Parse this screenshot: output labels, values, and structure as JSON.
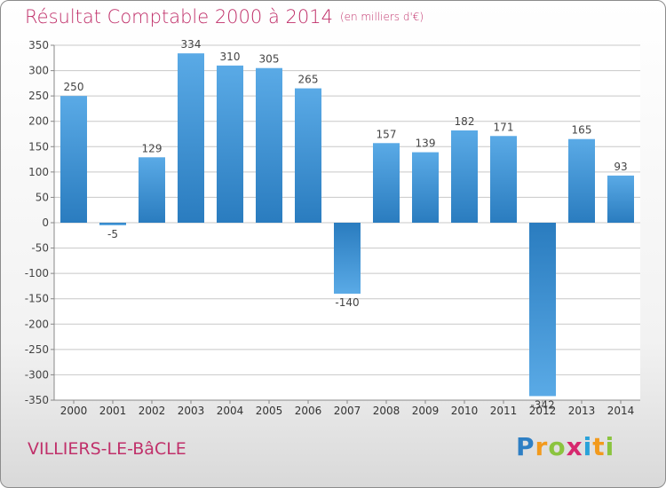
{
  "header": {
    "title": "Résultat Comptable 2000 à 2014",
    "unit": "(en milliers d'€)"
  },
  "commune": "VILLIERS-LE-BâCLE",
  "brand": {
    "letters": [
      "P",
      "r",
      "o",
      "x",
      "i",
      "t",
      "i"
    ],
    "colors": [
      "#2e7fc4",
      "#f29a1d",
      "#8bc43f",
      "#d6286e",
      "#2aa2d9",
      "#f29a1d",
      "#8bc43f"
    ]
  },
  "colors": {
    "bar_light": "#5aaae6",
    "bar_dark": "#2a7cbf",
    "label": "#444444",
    "grid": "#c8c8c8"
  },
  "chart_data": {
    "type": "bar",
    "categories": [
      "2000",
      "2001",
      "2002",
      "2003",
      "2004",
      "2005",
      "2006",
      "2007",
      "2008",
      "2009",
      "2010",
      "2011",
      "2012",
      "2013",
      "2014"
    ],
    "values": [
      250,
      -5,
      129,
      334,
      310,
      305,
      265,
      -140,
      157,
      139,
      182,
      171,
      -342,
      165,
      93
    ],
    "value_labels": [
      "250",
      "-5",
      "129",
      "334",
      "310",
      "305",
      "265",
      "-140",
      "157",
      "139",
      "182",
      "171",
      "-342",
      "165",
      "93"
    ],
    "yticks": [
      350,
      300,
      250,
      200,
      150,
      100,
      50,
      0,
      -50,
      -100,
      -150,
      -200,
      -250,
      -300,
      -350
    ],
    "ylim": [
      -350,
      350
    ],
    "grid": true
  }
}
